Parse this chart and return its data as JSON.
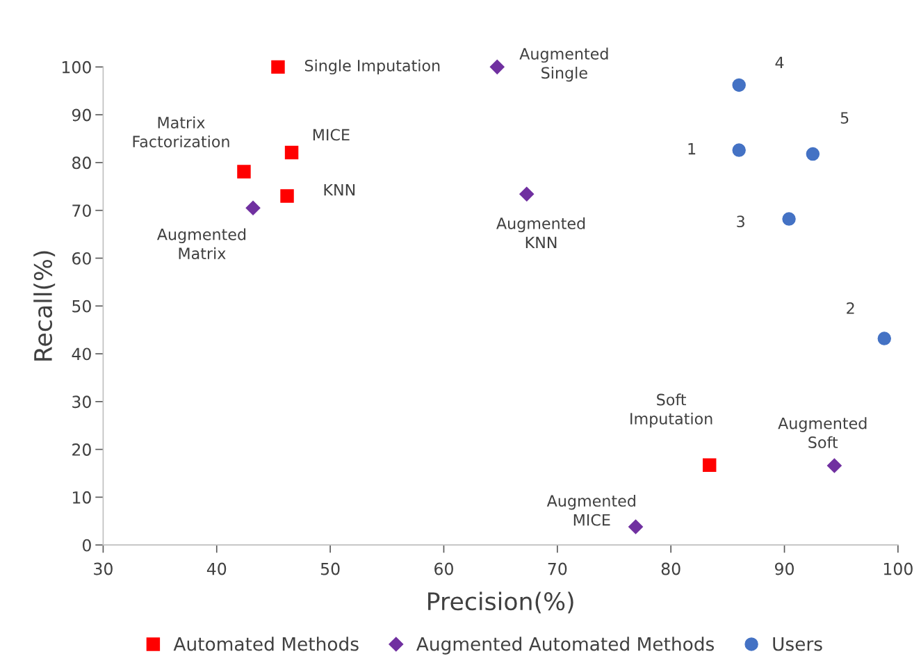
{
  "chart_data": {
    "type": "scatter",
    "xlabel": "Precision(%)",
    "ylabel": "Recall(%)",
    "xlim": [
      30,
      100
    ],
    "xticks": [
      30,
      40,
      50,
      60,
      70,
      80,
      90,
      100
    ],
    "ylim": [
      0,
      100
    ],
    "yticks": [
      0,
      10,
      20,
      30,
      40,
      50,
      60,
      70,
      80,
      90,
      100
    ],
    "grid": false,
    "legend": "bottom",
    "series": [
      {
        "name": "Automated Methods",
        "color": "#ff0000",
        "marker": "square",
        "x": [
          45.4,
          46.6,
          42.4,
          46.2,
          83.4
        ],
        "values": [
          100,
          82.1,
          78.1,
          73.0,
          16.7
        ]
      },
      {
        "name": "Augmented Automated Methods",
        "color": "#7030a0",
        "marker": "diamond",
        "x": [
          64.7,
          43.2,
          67.3,
          76.9,
          94.4
        ],
        "values": [
          100,
          70.5,
          73.4,
          3.8,
          16.6
        ]
      },
      {
        "name": "Users",
        "color": "#4472c4",
        "marker": "circle",
        "x": [
          86.0,
          86.0,
          92.5,
          90.4,
          98.8
        ],
        "values": [
          96.2,
          82.6,
          81.8,
          68.2,
          43.2
        ]
      }
    ],
    "annotations": [
      {
        "text": "Single Imputation",
        "x": 45.4,
        "y": 100
      },
      {
        "text": "MICE",
        "x": 46.6,
        "y": 82.1
      },
      {
        "text": "Matrix\nFactorization",
        "x": 42.4,
        "y": 78.1
      },
      {
        "text": "KNN",
        "x": 46.2,
        "y": 73.0
      },
      {
        "text": "Soft\nImputation",
        "x": 83.4,
        "y": 16.7
      },
      {
        "text": "Augmented\nSingle",
        "x": 64.7,
        "y": 100
      },
      {
        "text": "Augmented\nMatrix",
        "x": 43.2,
        "y": 70.5
      },
      {
        "text": "Augmented\nKNN",
        "x": 67.3,
        "y": 73.4
      },
      {
        "text": "Augmented\nMICE",
        "x": 76.9,
        "y": 3.8
      },
      {
        "text": "Augmented\nSoft",
        "x": 94.4,
        "y": 16.6
      },
      {
        "text": "4",
        "x": 86.0,
        "y": 96.2
      },
      {
        "text": "1",
        "x": 86.0,
        "y": 82.6
      },
      {
        "text": "5",
        "x": 92.5,
        "y": 81.8
      },
      {
        "text": "3",
        "x": 90.4,
        "y": 68.2
      },
      {
        "text": "2",
        "x": 98.8,
        "y": 43.2
      }
    ]
  }
}
